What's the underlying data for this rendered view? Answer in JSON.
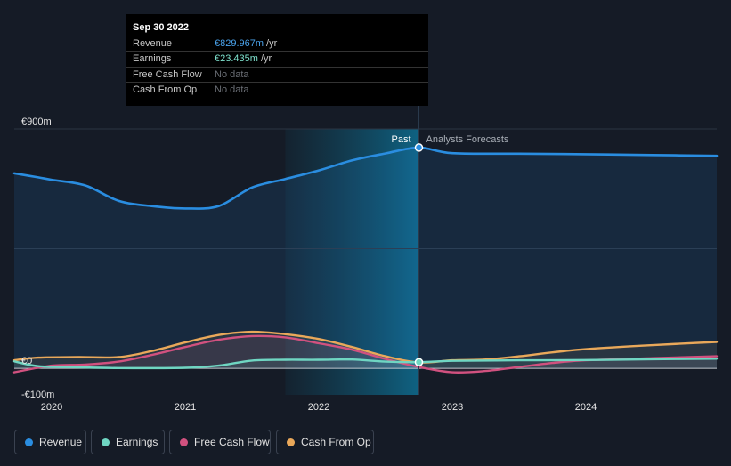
{
  "tooltip": {
    "date": "Sep 30 2022",
    "rows": [
      {
        "label": "Revenue",
        "value": "€829.967m",
        "unit": "/yr",
        "color": "#4aa3ec"
      },
      {
        "label": "Earnings",
        "value": "€23.435m",
        "unit": "/yr",
        "color": "#7fe3cf"
      },
      {
        "label": "Free Cash Flow",
        "value": "No data",
        "unit": "",
        "color": "#6b6f76"
      },
      {
        "label": "Cash From Op",
        "value": "No data",
        "unit": "",
        "color": "#6b6f76"
      }
    ]
  },
  "chart_data": {
    "type": "line",
    "title": "",
    "xlabel": "",
    "ylabel": "",
    "currency_unit": "€ millions",
    "ylim": [
      -100,
      900
    ],
    "xlim": [
      2019.72,
      2024.98
    ],
    "y_tick_labels": [
      "€900m",
      "€0",
      "-€100m"
    ],
    "x_tick_labels": [
      "2020",
      "2021",
      "2022",
      "2023",
      "2024"
    ],
    "x_ticks": [
      2020,
      2021,
      2022,
      2023,
      2024
    ],
    "divider_x": 2022.75,
    "highlight_start_x": 2021.75,
    "past_label": "Past",
    "forecast_label": "Analysts Forecasts",
    "series": [
      {
        "name": "Revenue",
        "color": "#2a8de0",
        "points": [
          [
            2019.72,
            733
          ],
          [
            2019.9,
            718
          ],
          [
            2020.0,
            709
          ],
          [
            2020.25,
            688
          ],
          [
            2020.5,
            630
          ],
          [
            2020.75,
            610
          ],
          [
            2021.0,
            601
          ],
          [
            2021.25,
            610
          ],
          [
            2021.5,
            680
          ],
          [
            2021.75,
            712
          ],
          [
            2022.0,
            744
          ],
          [
            2022.25,
            782
          ],
          [
            2022.5,
            808
          ],
          [
            2022.75,
            830
          ],
          [
            2023.0,
            809
          ],
          [
            2023.5,
            807
          ],
          [
            2024.0,
            805
          ],
          [
            2024.5,
            802
          ],
          [
            2024.98,
            799
          ]
        ]
      },
      {
        "name": "Earnings",
        "color": "#6fd6c2",
        "points": [
          [
            2019.72,
            26
          ],
          [
            2019.9,
            8
          ],
          [
            2020.2,
            4
          ],
          [
            2020.5,
            1
          ],
          [
            2021.0,
            2
          ],
          [
            2021.25,
            10
          ],
          [
            2021.5,
            29
          ],
          [
            2021.75,
            32
          ],
          [
            2022.0,
            32
          ],
          [
            2022.25,
            33
          ],
          [
            2022.5,
            25
          ],
          [
            2022.75,
            23
          ],
          [
            2023.0,
            28
          ],
          [
            2023.5,
            30
          ],
          [
            2024.0,
            31
          ],
          [
            2024.5,
            34
          ],
          [
            2024.98,
            36
          ]
        ]
      },
      {
        "name": "Free Cash Flow",
        "color": "#d1517f",
        "points": [
          [
            2019.72,
            -15
          ],
          [
            2020.0,
            10
          ],
          [
            2020.25,
            14
          ],
          [
            2020.5,
            25
          ],
          [
            2020.75,
            50
          ],
          [
            2021.0,
            80
          ],
          [
            2021.25,
            107
          ],
          [
            2021.5,
            121
          ],
          [
            2021.75,
            116
          ],
          [
            2022.0,
            94
          ],
          [
            2022.25,
            70
          ],
          [
            2022.5,
            35
          ],
          [
            2022.75,
            5
          ],
          [
            2023.0,
            -15
          ],
          [
            2023.25,
            -10
          ],
          [
            2023.5,
            5
          ],
          [
            2023.75,
            20
          ],
          [
            2024.0,
            30
          ],
          [
            2024.5,
            38
          ],
          [
            2024.98,
            45
          ]
        ]
      },
      {
        "name": "Cash From Op",
        "color": "#e9a85a",
        "points": [
          [
            2019.72,
            30
          ],
          [
            2019.9,
            40
          ],
          [
            2020.2,
            42
          ],
          [
            2020.5,
            42
          ],
          [
            2020.75,
            65
          ],
          [
            2021.0,
            97
          ],
          [
            2021.25,
            125
          ],
          [
            2021.5,
            137
          ],
          [
            2021.75,
            128
          ],
          [
            2022.0,
            110
          ],
          [
            2022.25,
            80
          ],
          [
            2022.5,
            45
          ],
          [
            2022.75,
            22
          ],
          [
            2023.0,
            30
          ],
          [
            2023.25,
            33
          ],
          [
            2023.5,
            45
          ],
          [
            2023.75,
            60
          ],
          [
            2024.0,
            72
          ],
          [
            2024.5,
            87
          ],
          [
            2024.98,
            99
          ]
        ]
      }
    ]
  },
  "legend": [
    {
      "label": "Revenue",
      "color": "#2a8de0"
    },
    {
      "label": "Earnings",
      "color": "#6fd6c2"
    },
    {
      "label": "Free Cash Flow",
      "color": "#d1517f"
    },
    {
      "label": "Cash From Op",
      "color": "#e9a85a"
    }
  ]
}
